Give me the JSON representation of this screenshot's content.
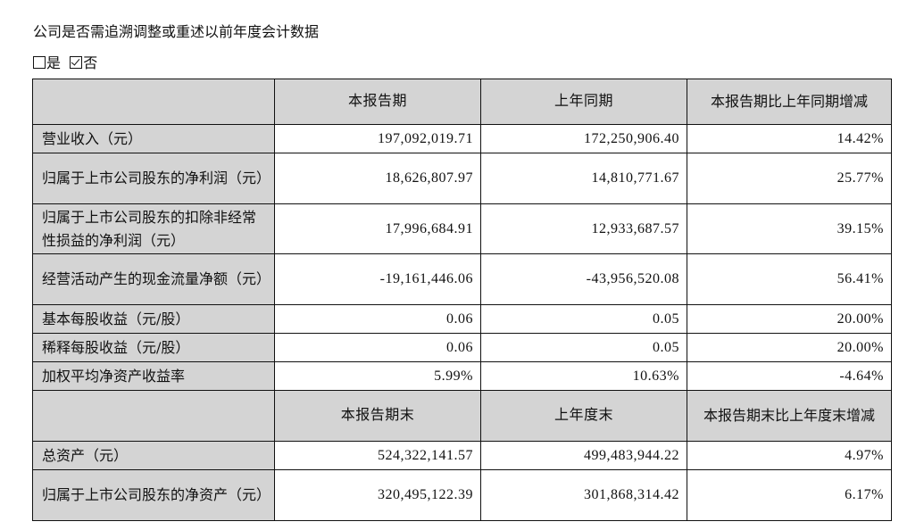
{
  "title": "公司是否需追溯调整或重述以前年度会计数据",
  "options": [
    {
      "label": "是",
      "checked": false
    },
    {
      "label": "否",
      "checked": true
    }
  ],
  "table": {
    "header1": [
      "",
      "本报告期",
      "上年同期",
      "本报告期比上年同期增减"
    ],
    "rows1": [
      {
        "label": "营业收入（元）",
        "current": "197,092,019.71",
        "prior": "172,250,906.40",
        "change": "14.42%"
      },
      {
        "label": "归属于上市公司股东的净利润（元）",
        "current": "18,626,807.97",
        "prior": "14,810,771.67",
        "change": "25.77%"
      },
      {
        "label": "归属于上市公司股东的扣除非经常性损益的净利润（元）",
        "current": "17,996,684.91",
        "prior": "12,933,687.57",
        "change": "39.15%"
      },
      {
        "label": "经营活动产生的现金流量净额（元）",
        "current": "-19,161,446.06",
        "prior": "-43,956,520.08",
        "change": "56.41%"
      },
      {
        "label": "基本每股收益（元/股）",
        "current": "0.06",
        "prior": "0.05",
        "change": "20.00%"
      },
      {
        "label": "稀释每股收益（元/股）",
        "current": "0.06",
        "prior": "0.05",
        "change": "20.00%"
      },
      {
        "label": "加权平均净资产收益率",
        "current": "5.99%",
        "prior": "10.63%",
        "change": "-4.64%"
      }
    ],
    "header2": [
      "",
      "本报告期末",
      "上年度末",
      "本报告期末比上年度末增减"
    ],
    "rows2": [
      {
        "label": "总资产（元）",
        "current": "524,322,141.57",
        "prior": "499,483,944.22",
        "change": "4.97%"
      },
      {
        "label": "归属于上市公司股东的净资产（元）",
        "current": "320,495,122.39",
        "prior": "301,868,314.42",
        "change": "6.17%"
      }
    ]
  }
}
